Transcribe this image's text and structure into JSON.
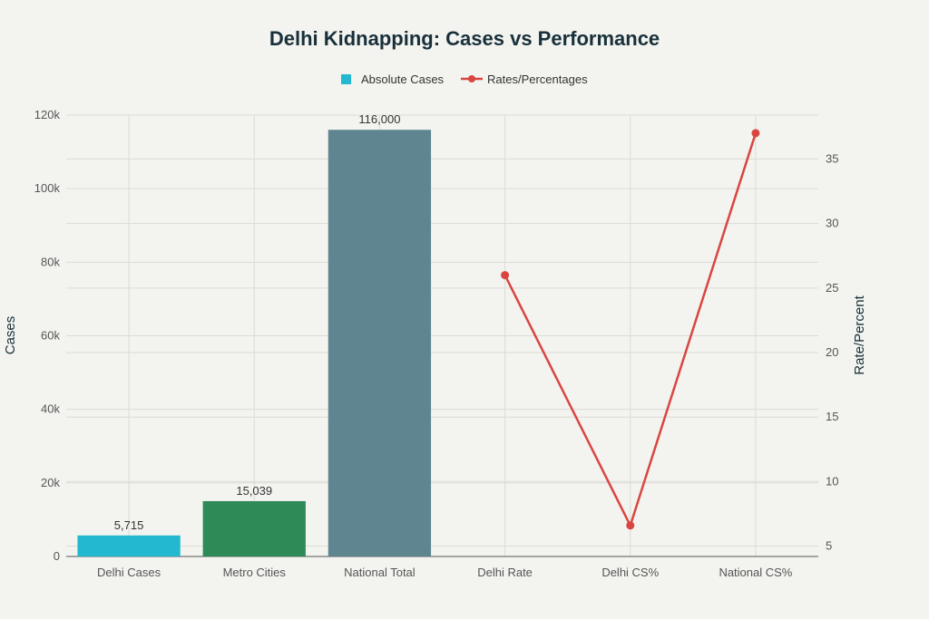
{
  "chart_data": {
    "type": "bar",
    "title": "Delhi Kidnapping: Cases vs Performance",
    "categories": [
      "Delhi Cases",
      "Metro Cities",
      "National Total",
      "Delhi Rate",
      "Delhi CS%",
      "National CS%"
    ],
    "series": [
      {
        "name": "Absolute Cases",
        "type": "bar",
        "axis": "left",
        "values": [
          5715,
          15039,
          116000,
          null,
          null,
          null
        ],
        "labels": [
          "5,715",
          "15,039",
          "116,000"
        ],
        "colors": [
          "#22b8cf",
          "#2e8b57",
          "#5e8590"
        ]
      },
      {
        "name": "Rates/Percentages",
        "type": "line",
        "axis": "right",
        "values": [
          null,
          null,
          null,
          26.0,
          6.6,
          37.0
        ],
        "color": "#d9463f"
      }
    ],
    "ylabel": "Cases",
    "y2label": "Rate/Percent",
    "ylim": [
      0,
      120000
    ],
    "y2lim": [
      4.2,
      38.4
    ],
    "yticks": [
      0,
      20000,
      40000,
      60000,
      80000,
      100000,
      120000
    ],
    "ytick_labels": [
      "0",
      "20k",
      "40k",
      "60k",
      "80k",
      "100k",
      "120k"
    ],
    "y2ticks": [
      5,
      10,
      15,
      20,
      25,
      30,
      35
    ],
    "y2tick_labels": [
      "5",
      "10",
      "15",
      "20",
      "25",
      "30",
      "35"
    ],
    "legend_position": "top-center",
    "grid": true
  }
}
